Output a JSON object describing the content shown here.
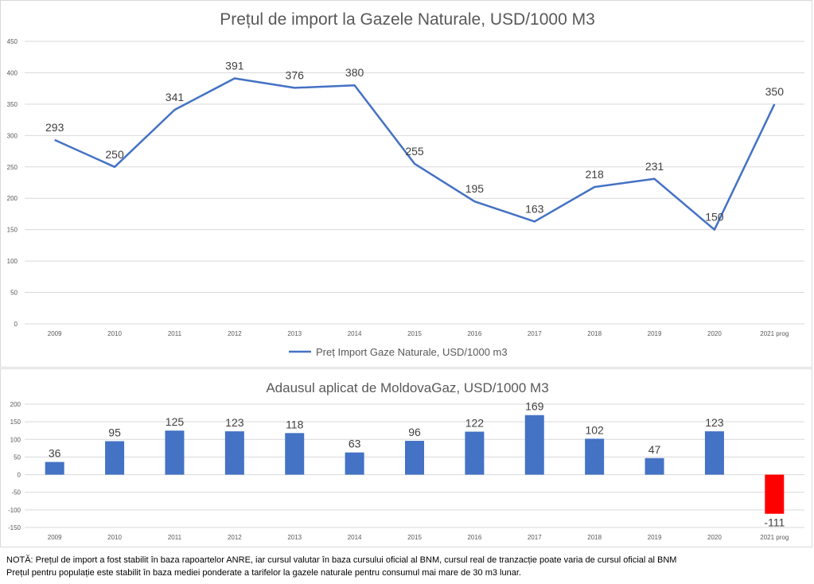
{
  "colors": {
    "line": "#4472C4",
    "bar_positive": "#4472C4",
    "bar_negative": "#FF0000",
    "grid": "#d9d9d9",
    "text": "#595959"
  },
  "chart_data": [
    {
      "type": "line",
      "title": "Prețul de import la Gazele Naturale, USD/1000 M3",
      "categories": [
        "2009",
        "2010",
        "2011",
        "2012",
        "2013",
        "2014",
        "2015",
        "2016",
        "2017",
        "2018",
        "2019",
        "2020",
        "2021 prog"
      ],
      "series": [
        {
          "name": "Preț Import Gaze Naturale, USD/1000 m3",
          "values": [
            293,
            250,
            341,
            391,
            376,
            380,
            255,
            195,
            163,
            218,
            231,
            150,
            350
          ]
        }
      ],
      "yticks": [
        "0",
        "50",
        "100",
        "150",
        "200",
        "250",
        "300",
        "350",
        "400",
        "450"
      ],
      "ylim": [
        0,
        450
      ],
      "legend": "bottom",
      "grid": true
    },
    {
      "type": "bar",
      "title": "Adausul aplicat de MoldovaGaz, USD/1000 M3",
      "categories": [
        "2009",
        "2010",
        "2011",
        "2012",
        "2013",
        "2014",
        "2015",
        "2016",
        "2017",
        "2018",
        "2019",
        "2020",
        "2021 prog"
      ],
      "values": [
        36,
        95,
        125,
        123,
        118,
        63,
        96,
        122,
        169,
        102,
        47,
        123,
        -111
      ],
      "labels": [
        "36",
        "95",
        "125",
        "123",
        "118",
        "63",
        "96",
        "122",
        "169",
        "102",
        "47",
        "123",
        "-111"
      ],
      "yticks": [
        "-150",
        "-100",
        "-50",
        "0",
        "50",
        "100",
        "150",
        "200"
      ],
      "ylim": [
        -150,
        200
      ],
      "grid": true
    }
  ],
  "notes": {
    "line1": "NOTĂ: Prețul de import  a fost stabilit în baza rapoartelor ANRE, iar cursul valutar în baza cursului oficial al BNM, cursul real de tranzacție poate varia de cursul oficial al BNM",
    "line2": "Prețul pentru  populație este stabilit în baza mediei ponderate  a tarifelor la gazele naturale pentru  consumul mai mare de 30 m3 lunar."
  }
}
